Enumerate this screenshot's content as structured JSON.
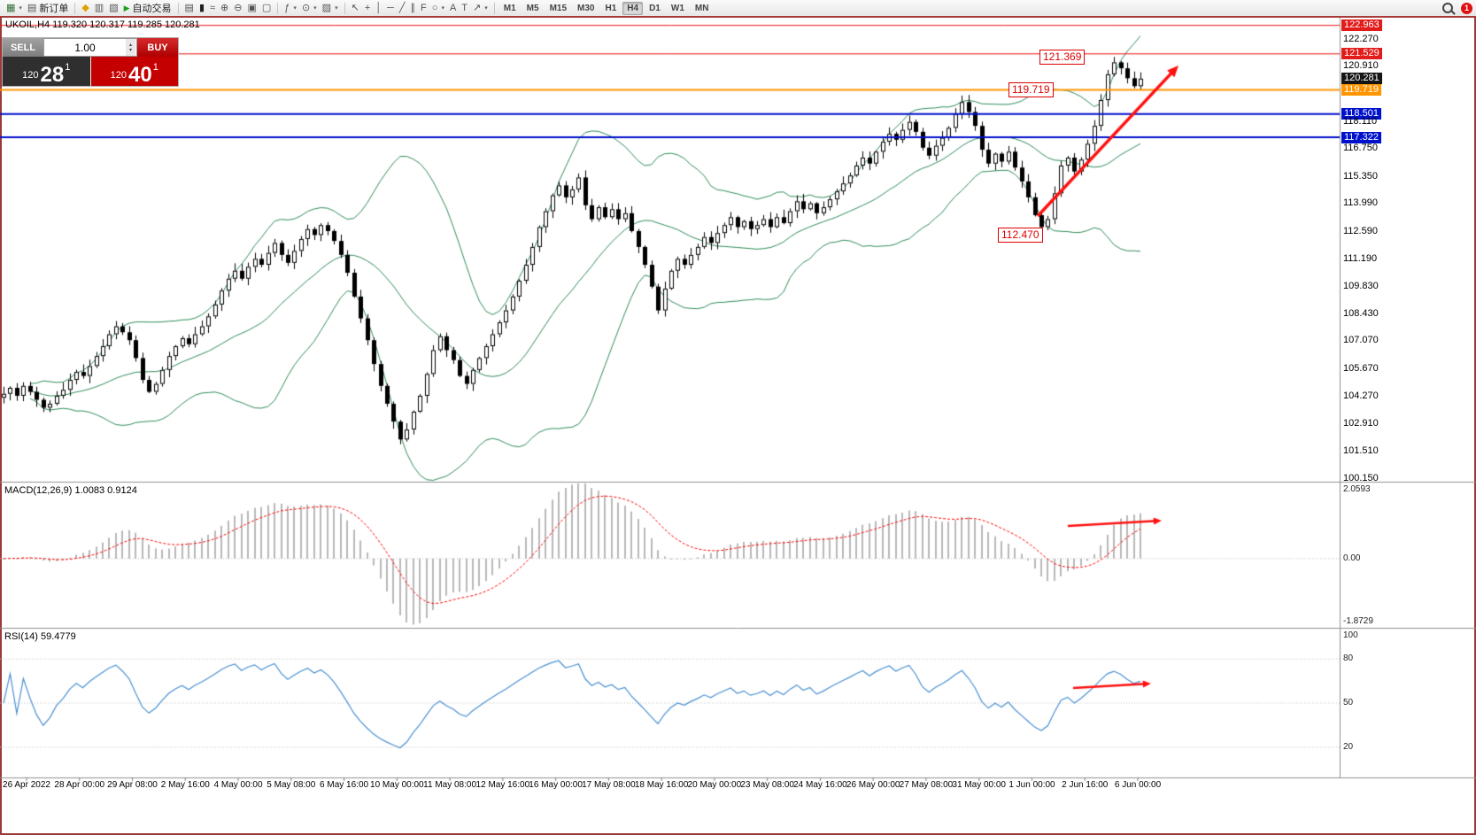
{
  "window": {
    "frame_color": "#a83a3a"
  },
  "toolbar": {
    "new_order_label": "新订单",
    "auto_trading_label": "自动交易",
    "timeframes": [
      "M1",
      "M5",
      "M15",
      "M30",
      "H1",
      "H4",
      "D1",
      "W1",
      "MN"
    ],
    "active_timeframe": "H4",
    "notification_count": "1",
    "groups": [
      [
        {
          "name": "new-chart",
          "icon": "new-chart",
          "caret": true
        },
        {
          "name": "new-order",
          "icon": "document",
          "label": "新订单"
        }
      ],
      [
        {
          "name": "mql5-community",
          "icon": "diamond"
        },
        {
          "name": "layouts",
          "icon": "layouts"
        },
        {
          "name": "data-window",
          "icon": "data-window"
        },
        {
          "name": "auto-trading",
          "icon": "play",
          "label": "自动交易"
        }
      ],
      [
        {
          "name": "bar-chart",
          "icon": "bar-chart"
        },
        {
          "name": "candlestick-chart",
          "icon": "candles"
        },
        {
          "name": "line-chart",
          "icon": "line"
        },
        {
          "name": "zoom-in",
          "icon": "zoom-in"
        },
        {
          "name": "zoom-out",
          "icon": "zoom-out"
        },
        {
          "name": "tile-windows",
          "icon": "tile"
        },
        {
          "name": "auto-arrange",
          "icon": "arrange"
        }
      ],
      [
        {
          "name": "indicators",
          "icon": "indicators",
          "caret": true
        },
        {
          "name": "periods",
          "icon": "clock",
          "caret": true
        },
        {
          "name": "templates",
          "icon": "templates",
          "caret": true
        }
      ],
      [
        {
          "name": "cursor",
          "icon": "cursor"
        },
        {
          "name": "crosshair",
          "icon": "crosshair"
        },
        {
          "name": "vertical-line",
          "icon": "vline"
        },
        {
          "name": "horizontal-line",
          "icon": "hline"
        },
        {
          "name": "trendline",
          "icon": "trendline"
        },
        {
          "name": "equidistant-channel",
          "icon": "channel"
        },
        {
          "name": "fibonacci",
          "icon": "fibonacci"
        },
        {
          "name": "shapes",
          "icon": "shapes",
          "caret": true
        },
        {
          "name": "text",
          "icon": "text"
        },
        {
          "name": "text-label",
          "icon": "label"
        },
        {
          "name": "arrow-tools",
          "icon": "arrows",
          "caret": true
        }
      ]
    ]
  },
  "trade_panel": {
    "sell_label": "SELL",
    "buy_label": "BUY",
    "lot_size": "1.00",
    "sell_price": {
      "prefix": "120",
      "big": "28",
      "sup": "1"
    },
    "buy_price": {
      "prefix": "120",
      "big": "40",
      "sup": "1"
    }
  },
  "chart": {
    "symbol_ohlc": "UKOIL,H4  119.320 120.317 119.285 120.281",
    "annotations": [
      {
        "label": "121.369"
      },
      {
        "label": "119.719"
      },
      {
        "label": "112.470"
      }
    ],
    "hlines": [
      {
        "price": 122.963,
        "color": "#ee1111",
        "width": 1
      },
      {
        "price": 121.529,
        "color": "#ee1111",
        "width": 1
      },
      {
        "price": 119.719,
        "color": "#ff9500",
        "width": 2
      },
      {
        "price": 118.501,
        "color": "#0011cc",
        "width": 2
      },
      {
        "price": 117.322,
        "color": "#0011cc",
        "width": 2
      }
    ],
    "price_axis": [
      {
        "label": "122.963",
        "price": 122.963,
        "style": "red"
      },
      {
        "label": "122.270",
        "price": 122.27,
        "style": "plain"
      },
      {
        "label": "121.529",
        "price": 121.529,
        "style": "red"
      },
      {
        "label": "120.910",
        "price": 120.91,
        "style": "plain"
      },
      {
        "label": "120.281",
        "price": 120.281,
        "style": "bid"
      },
      {
        "label": "119.719",
        "price": 119.719,
        "style": "orange"
      },
      {
        "label": "118.501",
        "price": 118.501,
        "style": "blue"
      },
      {
        "label": "118.110",
        "price": 118.11,
        "style": "plain"
      },
      {
        "label": "117.322",
        "price": 117.322,
        "style": "blue"
      },
      {
        "label": "116.750",
        "price": 116.75,
        "style": "plain"
      },
      {
        "label": "115.350",
        "price": 115.35,
        "style": "plain"
      },
      {
        "label": "113.990",
        "price": 113.99,
        "style": "plain"
      },
      {
        "label": "112.590",
        "price": 112.59,
        "style": "plain"
      },
      {
        "label": "111.190",
        "price": 111.19,
        "style": "plain"
      },
      {
        "label": "109.830",
        "price": 109.83,
        "style": "plain"
      },
      {
        "label": "108.430",
        "price": 108.43,
        "style": "plain"
      },
      {
        "label": "107.070",
        "price": 107.07,
        "style": "plain"
      },
      {
        "label": "105.670",
        "price": 105.67,
        "style": "plain"
      },
      {
        "label": "104.270",
        "price": 104.27,
        "style": "plain"
      },
      {
        "label": "102.910",
        "price": 102.91,
        "style": "plain"
      },
      {
        "label": "101.510",
        "price": 101.51,
        "style": "plain"
      },
      {
        "label": "100.150",
        "price": 100.15,
        "style": "plain"
      }
    ]
  },
  "macd": {
    "label": "MACD(12,26,9) 1.0083 0.9124",
    "axis": [
      {
        "label": "2.0593",
        "value": 2.0593
      },
      {
        "label": "0.00",
        "value": 0
      },
      {
        "label": "-1.8729",
        "value": -1.8729
      }
    ]
  },
  "rsi": {
    "label": "RSI(14) 59.4779",
    "axis": [
      {
        "label": "100",
        "value": 100
      },
      {
        "label": "80",
        "value": 80
      },
      {
        "label": "50",
        "value": 50
      },
      {
        "label": "20",
        "value": 20
      }
    ]
  },
  "chart_data": {
    "type": "candlestick",
    "symbol": "UKOIL",
    "timeframe": "H4",
    "open": 119.32,
    "high": 120.317,
    "low": 119.285,
    "close": 120.281,
    "first_open": 104.2,
    "closes": [
      104.4,
      104.7,
      104.3,
      104.8,
      104.5,
      104.1,
      103.7,
      103.9,
      104.3,
      104.6,
      105.1,
      105.5,
      105.3,
      105.8,
      106.3,
      106.8,
      107.4,
      107.8,
      107.5,
      107.1,
      106.2,
      105.1,
      104.5,
      104.9,
      105.6,
      106.3,
      106.8,
      107.2,
      106.9,
      107.4,
      107.8,
      108.3,
      108.9,
      109.6,
      110.2,
      110.6,
      110.2,
      110.8,
      111.2,
      110.9,
      111.5,
      112.0,
      111.4,
      111.0,
      111.6,
      112.2,
      112.7,
      112.4,
      112.9,
      112.6,
      112.1,
      111.4,
      110.5,
      109.3,
      108.2,
      107.1,
      105.9,
      104.8,
      103.9,
      103.0,
      102.1,
      102.6,
      103.5,
      104.3,
      105.4,
      106.6,
      107.3,
      106.6,
      106.1,
      105.3,
      104.9,
      105.6,
      106.2,
      106.8,
      107.4,
      108.0,
      108.6,
      109.3,
      110.1,
      110.9,
      111.8,
      112.8,
      113.6,
      114.4,
      114.9,
      114.3,
      114.7,
      115.3,
      113.9,
      113.2,
      113.8,
      113.3,
      113.7,
      113.2,
      113.5,
      112.6,
      111.8,
      110.9,
      109.8,
      108.6,
      109.7,
      110.6,
      111.2,
      110.9,
      111.4,
      111.8,
      112.3,
      112.0,
      112.5,
      112.9,
      113.3,
      112.8,
      113.1,
      112.7,
      112.9,
      113.2,
      112.8,
      113.3,
      113.0,
      113.6,
      114.1,
      113.7,
      114.0,
      113.5,
      113.8,
      114.2,
      114.6,
      115.0,
      115.4,
      115.9,
      116.3,
      116.0,
      116.6,
      117.1,
      117.5,
      117.2,
      117.7,
      118.1,
      117.6,
      116.8,
      116.4,
      116.9,
      117.3,
      117.8,
      118.5,
      119.1,
      118.6,
      117.9,
      116.7,
      116.0,
      116.5,
      116.1,
      116.6,
      115.8,
      115.1,
      114.3,
      113.4,
      112.8,
      113.2,
      114.5,
      115.9,
      116.3,
      115.6,
      116.2,
      117.0,
      117.9,
      119.2,
      120.5,
      121.1,
      120.8,
      120.3,
      119.9,
      120.281
    ],
    "indicators": {
      "bollinger": {
        "period": 20,
        "deviation": 2
      },
      "macd": {
        "fast": 12,
        "slow": 26,
        "signal": 9,
        "value": 1.0083,
        "signal_value": 0.9124
      },
      "rsi": {
        "period": 14,
        "value": 59.4779
      }
    },
    "price_axis_range": [
      100.15,
      123.35
    ],
    "key_levels": [
      122.963,
      121.529,
      119.719,
      118.501,
      117.322
    ],
    "annotated_prices": [
      121.369,
      119.719,
      112.47
    ],
    "time_labels": [
      "26 Apr 2022",
      "28 Apr 00:00",
      "29 Apr 08:00",
      "2 May 16:00",
      "4 May 00:00",
      "5 May 08:00",
      "6 May 16:00",
      "10 May 00:00",
      "11 May 08:00",
      "12 May 16:00",
      "16 May 00:00",
      "17 May 08:00",
      "18 May 16:00",
      "20 May 00:00",
      "23 May 08:00",
      "24 May 16:00",
      "26 May 00:00",
      "27 May 08:00",
      "31 May 00:00",
      "1 Jun 00:00",
      "2 Jun 16:00",
      "6 Jun 00:00"
    ]
  },
  "colors": {
    "bollinger": "#2e8b57",
    "candle_up_fill": "#ffffff",
    "candle_down_fill": "#000000",
    "candle_border": "#000000",
    "macd_hist": "#b8b8b8",
    "macd_signal": "#ff0000",
    "rsi_line": "#4a90d2",
    "trend_arrow": "#ff1111",
    "level_red": "#e21b1b",
    "level_blue": "#0011cc",
    "level_orange": "#ff9500",
    "bid_box": "#151515",
    "buy_button": "#c40000",
    "sell_button": "#8a8a8a"
  }
}
